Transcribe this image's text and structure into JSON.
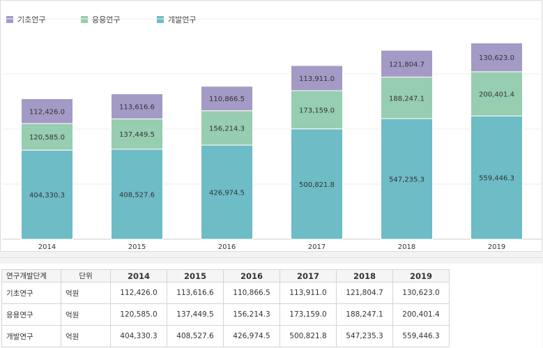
{
  "chart_data": {
    "type": "bar",
    "stacked": true,
    "categories": [
      "2014",
      "2015",
      "2016",
      "2017",
      "2018",
      "2019"
    ],
    "series": [
      {
        "name": "기초연구",
        "color": "#a49ac6",
        "values": [
          112426.0,
          113616.6,
          110866.5,
          113911.0,
          121804.7,
          130623.0
        ],
        "labels": [
          "112,426.0",
          "113,616.6",
          "110,866.5",
          "113,911.0",
          "121,804.7",
          "130,623.0"
        ]
      },
      {
        "name": "응용연구",
        "color": "#97cdb0",
        "values": [
          120585.0,
          137449.5,
          156214.3,
          173159.0,
          188247.1,
          200401.4
        ],
        "labels": [
          "120,585.0",
          "137,449.5",
          "156,214.3",
          "173,159.0",
          "188,247.1",
          "200,401.4"
        ]
      },
      {
        "name": "개발연구",
        "color": "#6dbcc6",
        "values": [
          404330.3,
          408527.6,
          426974.5,
          500821.8,
          547235.3,
          559446.3
        ],
        "labels": [
          "404,330.3",
          "408,527.6",
          "426,974.5",
          "500,821.8",
          "547,235.3",
          "559,446.3"
        ]
      }
    ],
    "ylim": [
      0,
      1000000
    ],
    "grid": true,
    "legend": "top-left"
  },
  "table": {
    "header_stage": "연구개발단계",
    "header_unit": "단위",
    "years": [
      "2014",
      "2015",
      "2016",
      "2017",
      "2018",
      "2019"
    ],
    "rows": [
      {
        "stage": "기초연구",
        "unit": "억원",
        "values": [
          "112,426.0",
          "113,616.6",
          "110,866.5",
          "113,911.0",
          "121,804.7",
          "130,623.0"
        ]
      },
      {
        "stage": "응용연구",
        "unit": "억원",
        "values": [
          "120,585.0",
          "137,449.5",
          "156,214.3",
          "173,159.0",
          "188,247.1",
          "200,401.4"
        ]
      },
      {
        "stage": "개발연구",
        "unit": "억원",
        "values": [
          "404,330.3",
          "408,527.6",
          "426,974.5",
          "500,821.8",
          "547,235.3",
          "559,446.3"
        ]
      }
    ]
  }
}
